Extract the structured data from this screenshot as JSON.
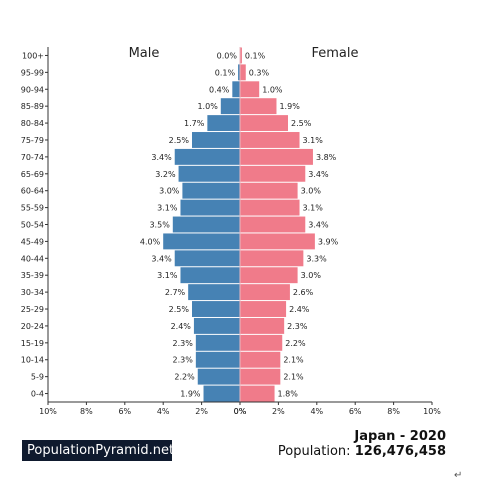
{
  "chart_data": {
    "type": "bar",
    "orientation": "horizontal",
    "layout": "population-pyramid",
    "categories": [
      "100+",
      "95-99",
      "90-94",
      "85-89",
      "80-84",
      "75-79",
      "70-74",
      "65-69",
      "60-64",
      "55-59",
      "50-54",
      "45-49",
      "40-44",
      "35-39",
      "30-34",
      "25-29",
      "20-24",
      "15-19",
      "10-14",
      "5-9",
      "0-4"
    ],
    "series": [
      {
        "name": "Male",
        "values": [
          0.0,
          0.1,
          0.4,
          1.0,
          1.7,
          2.5,
          3.4,
          3.2,
          3.0,
          3.1,
          3.5,
          4.0,
          3.4,
          3.1,
          2.7,
          2.5,
          2.4,
          2.3,
          2.3,
          2.2,
          1.9
        ],
        "color": "#4682b4"
      },
      {
        "name": "Female",
        "values": [
          0.1,
          0.3,
          1.0,
          1.9,
          2.5,
          3.1,
          3.8,
          3.4,
          3.0,
          3.1,
          3.4,
          3.9,
          3.3,
          3.0,
          2.6,
          2.4,
          2.3,
          2.2,
          2.1,
          2.1,
          1.8
        ],
        "color": "#f07b8a"
      }
    ],
    "x_ticks_left": [
      "10%",
      "8%",
      "6%",
      "4%",
      "2%",
      "0%"
    ],
    "x_ticks_right": [
      "0%",
      "2%",
      "4%",
      "6%",
      "8%",
      "10%"
    ],
    "xlim": [
      0,
      10
    ],
    "value_suffix": "%",
    "grid": false
  },
  "footer": {
    "brand": "PopulationPyramid.net",
    "title": "Japan - 2020",
    "population_label": "Population: ",
    "population_value": "126,476,458",
    "return_mark": "↵"
  }
}
